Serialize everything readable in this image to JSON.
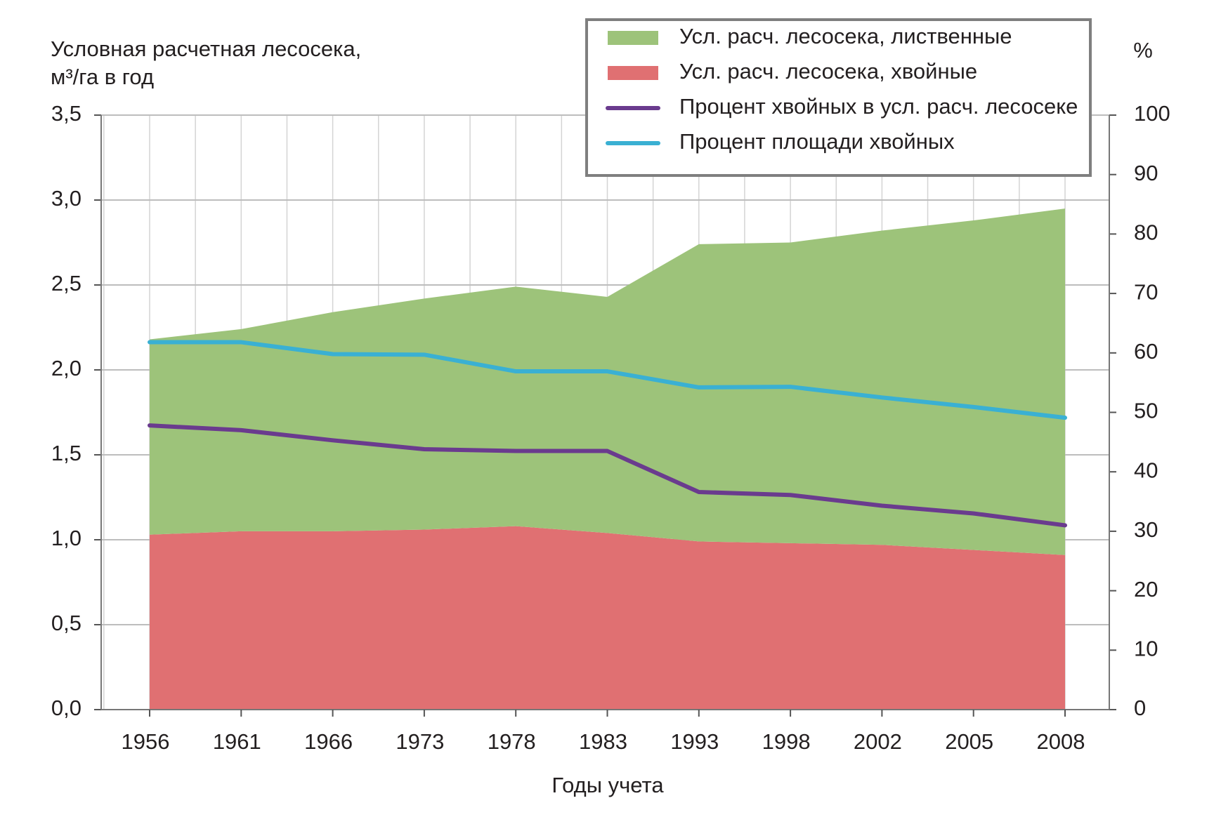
{
  "chart_data": {
    "type": "area",
    "y_label_lines": [
      "Условная расчетная лесосека,",
      "м³/га в год"
    ],
    "y2_label": "%",
    "x_label": "Годы учета",
    "categories": [
      "1956",
      "1961",
      "1966",
      "1973",
      "1978",
      "1983",
      "1993",
      "1998",
      "2002",
      "2005",
      "2008"
    ],
    "series": [
      {
        "name": "Усл. расч. лесосека, лиственные",
        "type": "area",
        "color": "#9dc37a",
        "values": [
          1.15,
          1.19,
          1.29,
          1.36,
          1.41,
          1.39,
          1.75,
          1.77,
          1.85,
          1.94,
          2.04
        ]
      },
      {
        "name": "Усл. расч. лесосека, хвойные",
        "type": "area",
        "color": "#e07072",
        "values": [
          1.03,
          1.05,
          1.05,
          1.06,
          1.08,
          1.04,
          0.99,
          0.98,
          0.97,
          0.94,
          0.91
        ]
      },
      {
        "name": "Процент хвойных в усл. расч. лесосеке",
        "type": "line",
        "axis": "y2",
        "color": "#6a3b8e",
        "values": [
          47.8,
          47.0,
          45.3,
          43.8,
          43.5,
          43.5,
          36.6,
          36.1,
          34.3,
          33.0,
          31.0
        ]
      },
      {
        "name": "Процент площади хвойных",
        "type": "line",
        "axis": "y2",
        "color": "#3ab0d3",
        "values": [
          61.8,
          61.8,
          59.8,
          59.7,
          56.9,
          56.9,
          54.2,
          54.3,
          52.5,
          50.9,
          49.1
        ]
      }
    ],
    "ylim": [
      0,
      3.5
    ],
    "yticks": [
      {
        "value": 0,
        "label": "0,0"
      },
      {
        "value": 0.5,
        "label": "0,5"
      },
      {
        "value": 1,
        "label": "1,0"
      },
      {
        "value": 1.5,
        "label": "1,5"
      },
      {
        "value": 2,
        "label": "2,0"
      },
      {
        "value": 2.5,
        "label": "2,5"
      },
      {
        "value": 3,
        "label": "3,0"
      },
      {
        "value": 3.5,
        "label": "3,5"
      }
    ],
    "y2lim": [
      0,
      100
    ],
    "y2ticks": [
      0,
      10,
      20,
      30,
      40,
      50,
      60,
      70,
      80,
      90,
      100
    ],
    "grid": true,
    "legend": "top-right"
  }
}
